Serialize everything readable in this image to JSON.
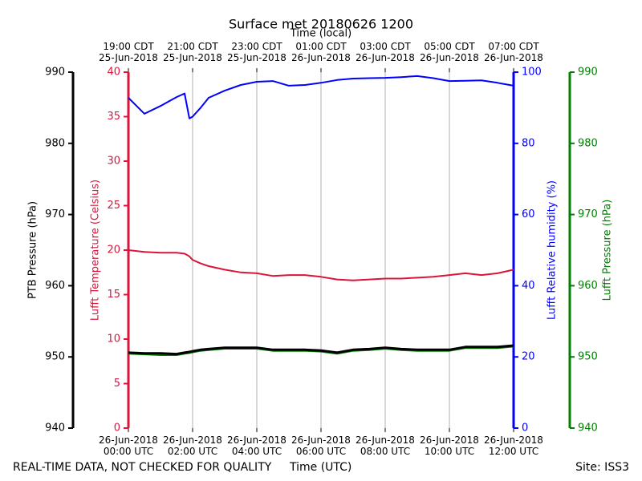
{
  "chart_data": {
    "type": "line",
    "title": "Surface met 20180626 1200",
    "xlabel": "Time (UTC)",
    "xlabel_top": "Time (local)",
    "footer_left": "REAL-TIME DATA, NOT CHECKED FOR QUALITY",
    "footer_right": "Site: ISS3",
    "xlim": [
      0,
      12
    ],
    "grid": true,
    "xticks": [
      {
        "value": 0,
        "label": "26-Jun-2018\n00:00 UTC"
      },
      {
        "value": 2,
        "label": "26-Jun-2018\n02:00 UTC"
      },
      {
        "value": 4,
        "label": "26-Jun-2018\n04:00 UTC"
      },
      {
        "value": 6,
        "label": "26-Jun-2018\n06:00 UTC"
      },
      {
        "value": 8,
        "label": "26-Jun-2018\n08:00 UTC"
      },
      {
        "value": 10,
        "label": "26-Jun-2018\n10:00 UTC"
      },
      {
        "value": 12,
        "label": "26-Jun-2018\n12:00 UTC"
      }
    ],
    "xticks_top": [
      {
        "value": 0,
        "label": "19:00 CDT\n25-Jun-2018"
      },
      {
        "value": 2,
        "label": "21:00 CDT\n25-Jun-2018"
      },
      {
        "value": 4,
        "label": "23:00 CDT\n25-Jun-2018"
      },
      {
        "value": 6,
        "label": "01:00 CDT\n26-Jun-2018"
      },
      {
        "value": 8,
        "label": "03:00 CDT\n26-Jun-2018"
      },
      {
        "value": 10,
        "label": "05:00 CDT\n26-Jun-2018"
      },
      {
        "value": 12,
        "label": "07:00 CDT\n26-Jun-2018"
      }
    ],
    "axes": [
      {
        "label": "PTB Pressure (hPa)",
        "color": "#000000",
        "ylim": [
          940,
          990
        ],
        "yticks": [
          940,
          950,
          960,
          970,
          980,
          990
        ]
      },
      {
        "label": "Lufft Temperature (Celsius)",
        "color": "#dc143c",
        "ylim": [
          0,
          40
        ],
        "yticks": [
          0,
          5,
          10,
          15,
          20,
          25,
          30,
          35,
          40
        ]
      },
      {
        "label": "Lufft Relative humidity (%)",
        "color": "#0000ff",
        "ylim": [
          0,
          100
        ],
        "yticks": [
          0,
          20,
          40,
          60,
          80,
          100
        ]
      },
      {
        "label": "Lufft Pressure (hPa)",
        "color": "#008000",
        "ylim": [
          940,
          990
        ],
        "yticks": [
          940,
          950,
          960,
          970,
          980,
          990
        ]
      }
    ],
    "x": [
      0,
      0.5,
      1,
      1.5,
      1.75,
      1.9,
      2,
      2.25,
      2.5,
      3,
      3.5,
      4,
      4.5,
      5,
      5.5,
      6,
      6.5,
      7,
      7.5,
      8,
      8.5,
      9,
      9.5,
      10,
      10.5,
      11,
      11.5,
      12
    ],
    "series": [
      {
        "name": "Lufft Temperature",
        "axis": 1,
        "color": "#dc143c",
        "values": [
          20.0,
          19.8,
          19.7,
          19.7,
          19.6,
          19.3,
          18.9,
          18.5,
          18.2,
          17.8,
          17.5,
          17.4,
          17.1,
          17.2,
          17.2,
          17.0,
          16.7,
          16.6,
          16.7,
          16.8,
          16.8,
          16.9,
          17.0,
          17.2,
          17.4,
          17.2,
          17.4,
          17.8
        ]
      },
      {
        "name": "Lufft Relative humidity",
        "axis": 2,
        "color": "#0000ff",
        "values": [
          92.8,
          88.3,
          90.5,
          93.0,
          94.0,
          87.0,
          87.5,
          90.0,
          92.8,
          94.8,
          96.4,
          97.3,
          97.5,
          96.2,
          96.4,
          97.0,
          97.8,
          98.2,
          98.3,
          98.4,
          98.6,
          98.9,
          98.3,
          97.5,
          97.6,
          97.7,
          97.0,
          96.2
        ]
      },
      {
        "name": "Lufft Pressure",
        "axis": 3,
        "color": "#008000",
        "values": [
          950.5,
          950.4,
          950.3,
          950.3,
          950.5,
          950.6,
          950.7,
          950.9,
          951.0,
          951.2,
          951.2,
          951.2,
          950.9,
          950.9,
          950.9,
          950.8,
          950.5,
          950.9,
          951.0,
          951.2,
          951.0,
          950.9,
          950.9,
          950.9,
          951.3,
          951.3,
          951.3,
          951.5
        ]
      },
      {
        "name": "PTB Pressure",
        "axis": 0,
        "color": "#000000",
        "values": [
          950.6,
          950.5,
          950.5,
          950.4,
          950.6,
          950.7,
          950.8,
          951.0,
          951.1,
          951.3,
          951.3,
          951.3,
          951.0,
          951.0,
          951.0,
          950.9,
          950.6,
          951.0,
          951.1,
          951.3,
          951.1,
          951.0,
          951.0,
          951.0,
          951.4,
          951.4,
          951.4,
          951.6
        ]
      }
    ]
  }
}
